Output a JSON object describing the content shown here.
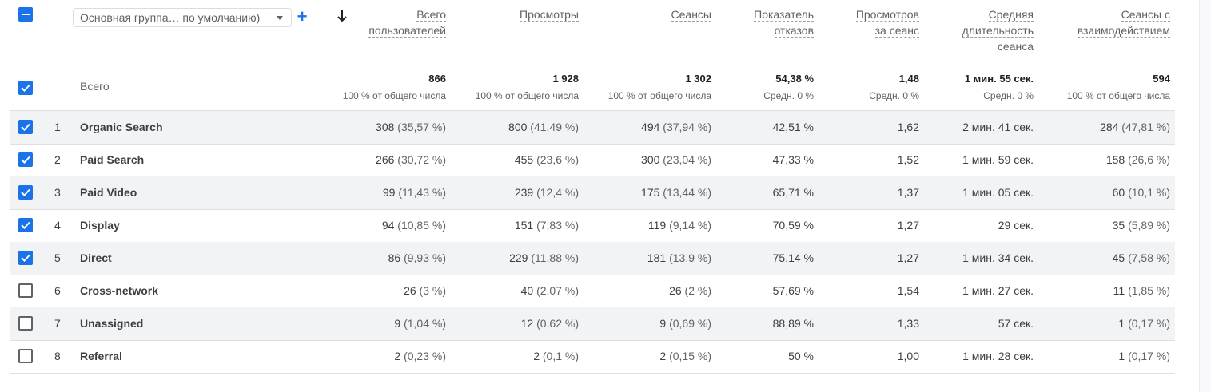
{
  "dimension_selector": {
    "value": "Основная группа… по умолчанию)"
  },
  "headers": [
    {
      "id": "users",
      "lines": [
        "Всего",
        "пользователей"
      ]
    },
    {
      "id": "views",
      "lines": [
        "Просмотры"
      ]
    },
    {
      "id": "sessions",
      "lines": [
        "Сеансы"
      ]
    },
    {
      "id": "bounce",
      "lines": [
        "Показатель",
        "отказов"
      ]
    },
    {
      "id": "views_per_session",
      "lines": [
        "Просмотров",
        "за сеанс"
      ]
    },
    {
      "id": "avg_duration",
      "lines": [
        "Средняя",
        "длительность",
        "сеанса"
      ]
    },
    {
      "id": "engaged_sessions",
      "lines": [
        "Сеансы с",
        "взаимодействием"
      ]
    }
  ],
  "totals": {
    "label": "Всего",
    "values": [
      "866",
      "1 928",
      "1 302",
      "54,38 %",
      "1,48",
      "1 мин. 55 сек.",
      "594"
    ],
    "subs": [
      "100 % от общего числа",
      "100 % от общего числа",
      "100 % от общего числа",
      "Средн. 0 %",
      "Средн. 0 %",
      "Средн. 0 %",
      "100 % от общего числа"
    ]
  },
  "rows": [
    {
      "num": "1",
      "name": "Organic Search",
      "checked": true,
      "cells": [
        [
          "308",
          "(35,57 %)"
        ],
        [
          "800",
          "(41,49 %)"
        ],
        [
          "494",
          "(37,94 %)"
        ],
        [
          "42,51 %",
          ""
        ],
        [
          "1,62",
          ""
        ],
        [
          "2 мин. 41 сек.",
          ""
        ],
        [
          "284",
          "(47,81 %)"
        ]
      ]
    },
    {
      "num": "2",
      "name": "Paid Search",
      "checked": true,
      "cells": [
        [
          "266",
          "(30,72 %)"
        ],
        [
          "455",
          "(23,6 %)"
        ],
        [
          "300",
          "(23,04 %)"
        ],
        [
          "47,33 %",
          ""
        ],
        [
          "1,52",
          ""
        ],
        [
          "1 мин. 59 сек.",
          ""
        ],
        [
          "158",
          "(26,6 %)"
        ]
      ]
    },
    {
      "num": "3",
      "name": "Paid Video",
      "checked": true,
      "cells": [
        [
          "99",
          "(11,43 %)"
        ],
        [
          "239",
          "(12,4 %)"
        ],
        [
          "175",
          "(13,44 %)"
        ],
        [
          "65,71 %",
          ""
        ],
        [
          "1,37",
          ""
        ],
        [
          "1 мин. 05 сек.",
          ""
        ],
        [
          "60",
          "(10,1 %)"
        ]
      ]
    },
    {
      "num": "4",
      "name": "Display",
      "checked": true,
      "cells": [
        [
          "94",
          "(10,85 %)"
        ],
        [
          "151",
          "(7,83 %)"
        ],
        [
          "119",
          "(9,14 %)"
        ],
        [
          "70,59 %",
          ""
        ],
        [
          "1,27",
          ""
        ],
        [
          "29 сек.",
          ""
        ],
        [
          "35",
          "(5,89 %)"
        ]
      ]
    },
    {
      "num": "5",
      "name": "Direct",
      "checked": true,
      "cells": [
        [
          "86",
          "(9,93 %)"
        ],
        [
          "229",
          "(11,88 %)"
        ],
        [
          "181",
          "(13,9 %)"
        ],
        [
          "75,14 %",
          ""
        ],
        [
          "1,27",
          ""
        ],
        [
          "1 мин. 34 сек.",
          ""
        ],
        [
          "45",
          "(7,58 %)"
        ]
      ]
    },
    {
      "num": "6",
      "name": "Cross-network",
      "checked": false,
      "cells": [
        [
          "26",
          "(3 %)"
        ],
        [
          "40",
          "(2,07 %)"
        ],
        [
          "26",
          "(2 %)"
        ],
        [
          "57,69 %",
          ""
        ],
        [
          "1,54",
          ""
        ],
        [
          "1 мин. 27 сек.",
          ""
        ],
        [
          "11",
          "(1,85 %)"
        ]
      ]
    },
    {
      "num": "7",
      "name": "Unassigned",
      "checked": false,
      "cells": [
        [
          "9",
          "(1,04 %)"
        ],
        [
          "12",
          "(0,62 %)"
        ],
        [
          "9",
          "(0,69 %)"
        ],
        [
          "88,89 %",
          ""
        ],
        [
          "1,33",
          ""
        ],
        [
          "57 сек.",
          ""
        ],
        [
          "1",
          "(0,17 %)"
        ]
      ]
    },
    {
      "num": "8",
      "name": "Referral",
      "checked": false,
      "cells": [
        [
          "2",
          "(0,23 %)"
        ],
        [
          "2",
          "(0,1 %)"
        ],
        [
          "2",
          "(0,15 %)"
        ],
        [
          "50 %",
          ""
        ],
        [
          "1,00",
          ""
        ],
        [
          "1 мин. 28 сек.",
          ""
        ],
        [
          "1",
          "(0,17 %)"
        ]
      ]
    }
  ],
  "colors": {
    "accent": "#1a73e8",
    "row_selected_bg": "#f1f3f4",
    "divider": "#dadce0"
  },
  "icons": {
    "sort": "arrow-down-icon",
    "add": "plus-icon",
    "dropdown": "caret-down-icon"
  }
}
